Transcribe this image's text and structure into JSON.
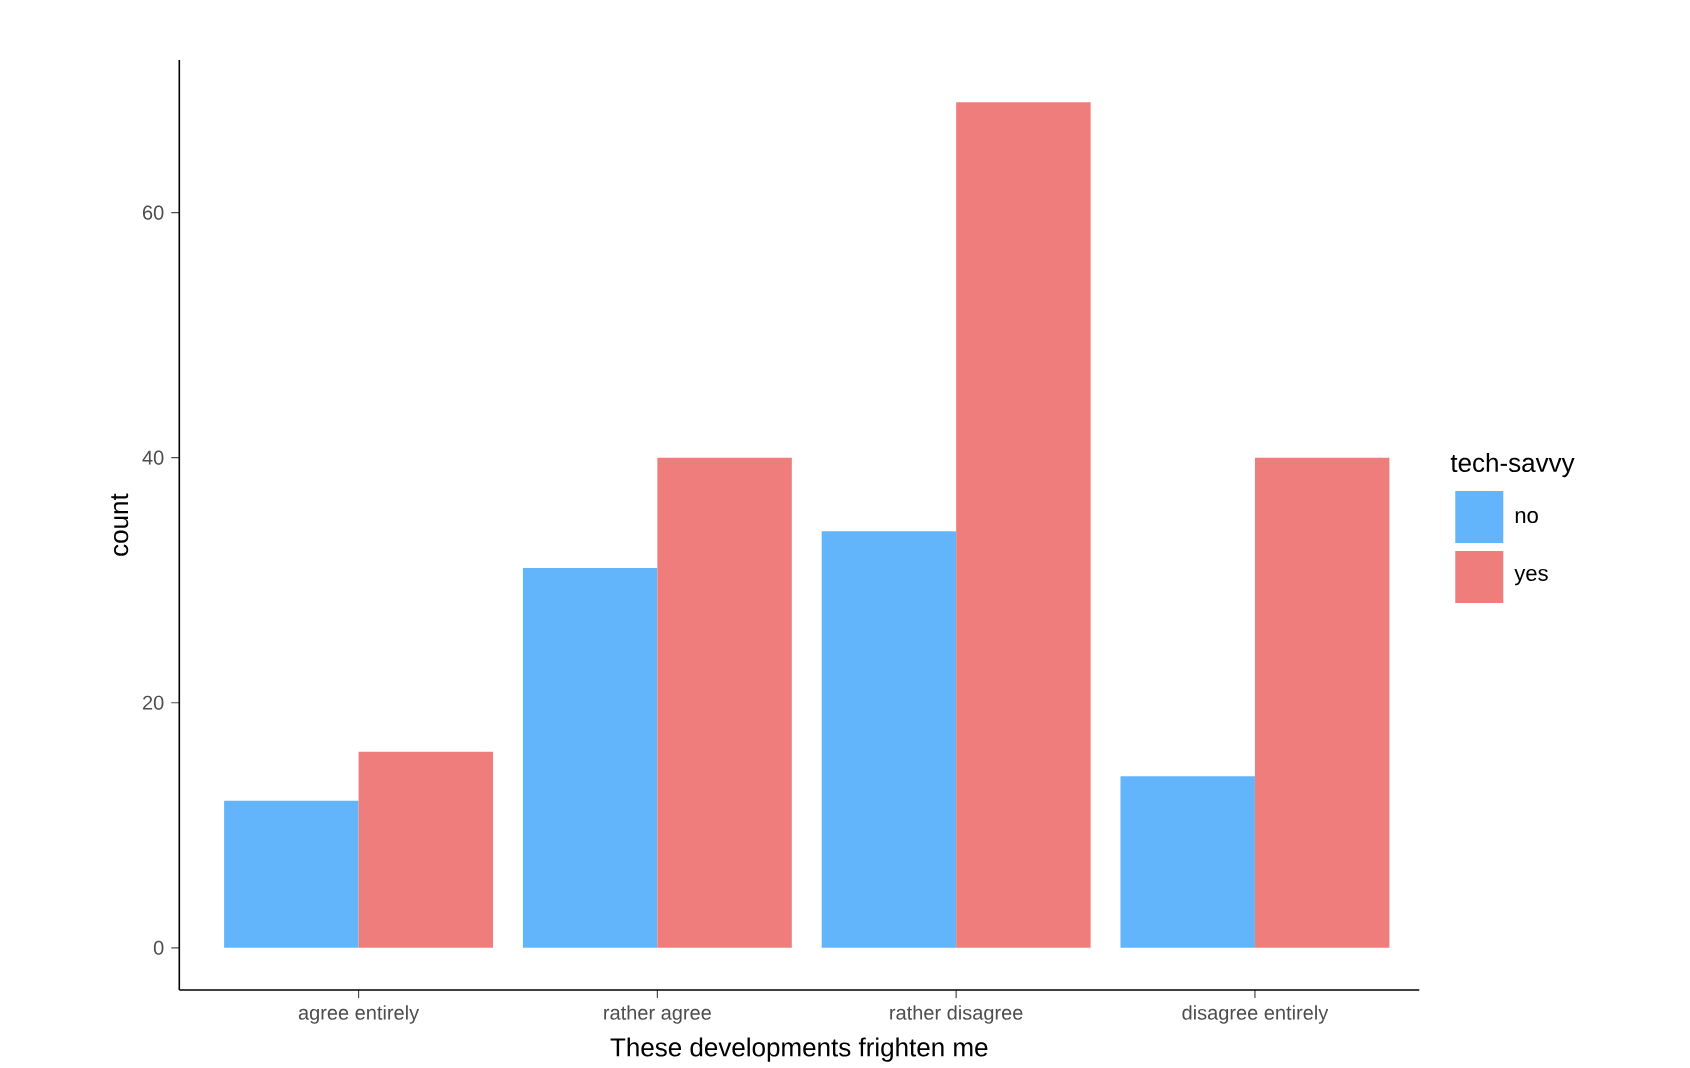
{
  "chart_data": {
    "type": "bar",
    "xlabel": "These developments frighten me",
    "ylabel": "count",
    "legend_title": "tech-savvy",
    "legend": "right",
    "grid": false,
    "categories": [
      "agree entirely",
      "rather agree",
      "rather disagree",
      "disagree entirely"
    ],
    "series": [
      {
        "name": "no",
        "color": "#62b5fb",
        "values": [
          12,
          31,
          34,
          14
        ]
      },
      {
        "name": "yes",
        "color": "#ef7d7b",
        "values": [
          16,
          40,
          69,
          40
        ]
      }
    ],
    "ylim": [
      -3.45,
      72.45
    ],
    "yticks": [
      0,
      20,
      40,
      60
    ]
  }
}
